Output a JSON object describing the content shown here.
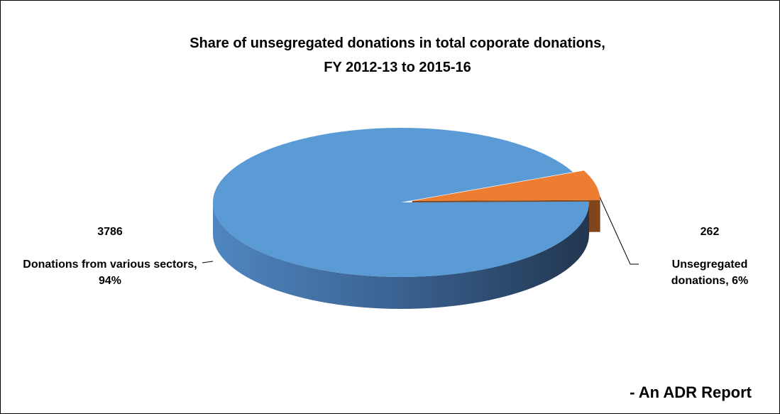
{
  "chart_data": {
    "type": "pie",
    "title": "Share of unsegregated donations in total coporate donations,\nFY 2012-13 to 2015-16",
    "labels": [
      "Donations from various sectors, 94%",
      "Unsegregated donations, 6%"
    ],
    "values": [
      3786,
      262
    ],
    "colors": [
      "#5b9bd5",
      "#ed7d31"
    ],
    "source": "- An ADR Report"
  }
}
